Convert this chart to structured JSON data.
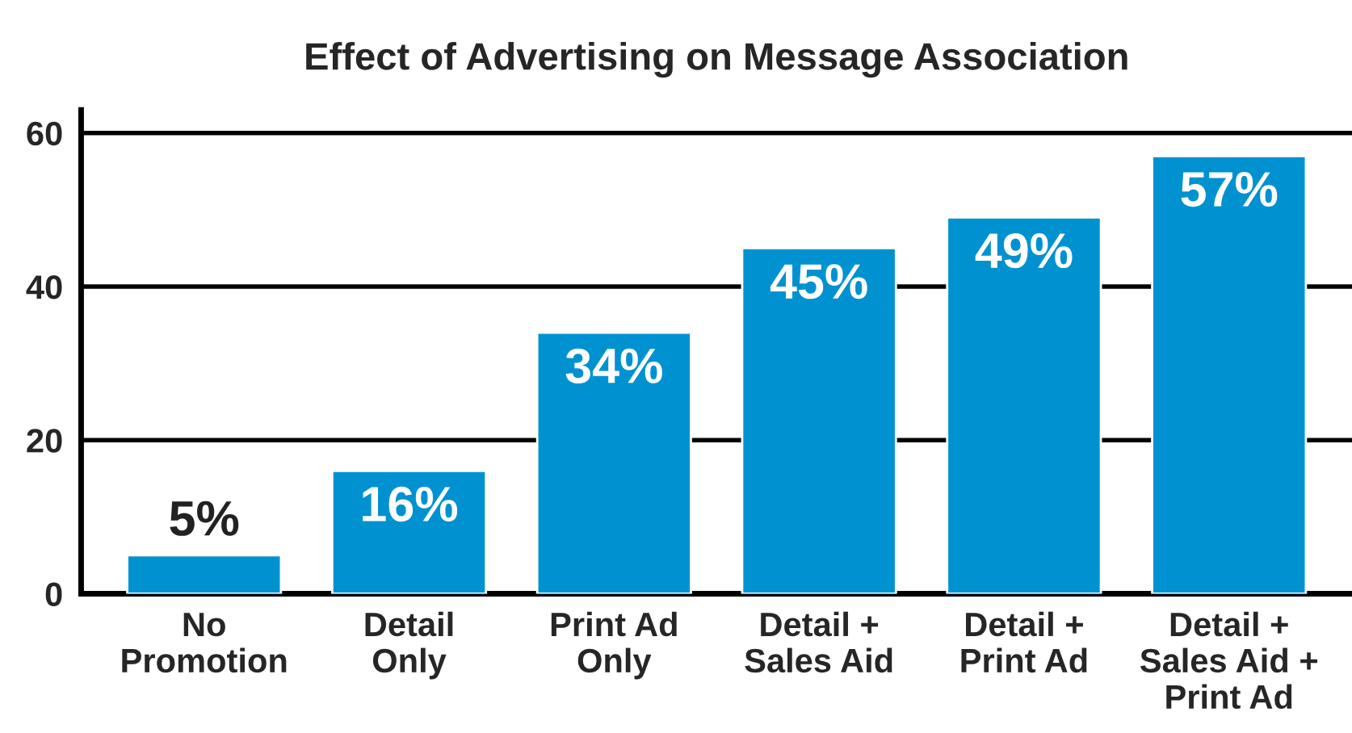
{
  "chart_data": {
    "type": "bar",
    "title": "Effect of Advertising on Message Association",
    "categories": [
      "No\nPromotion",
      "Detail\nOnly",
      "Print Ad\nOnly",
      "Detail +\nSales Aid",
      "Detail +\nPrint Ad",
      "Detail +\nSales Aid +\nPrint Ad"
    ],
    "values": [
      5,
      16,
      34,
      45,
      49,
      57
    ],
    "value_labels": [
      "5%",
      "16%",
      "34%",
      "45%",
      "49%",
      "57%"
    ],
    "color": "#0092d0",
    "ylim": [
      0,
      63
    ],
    "yticks": [
      0,
      20,
      40,
      60
    ],
    "grid": "y"
  }
}
